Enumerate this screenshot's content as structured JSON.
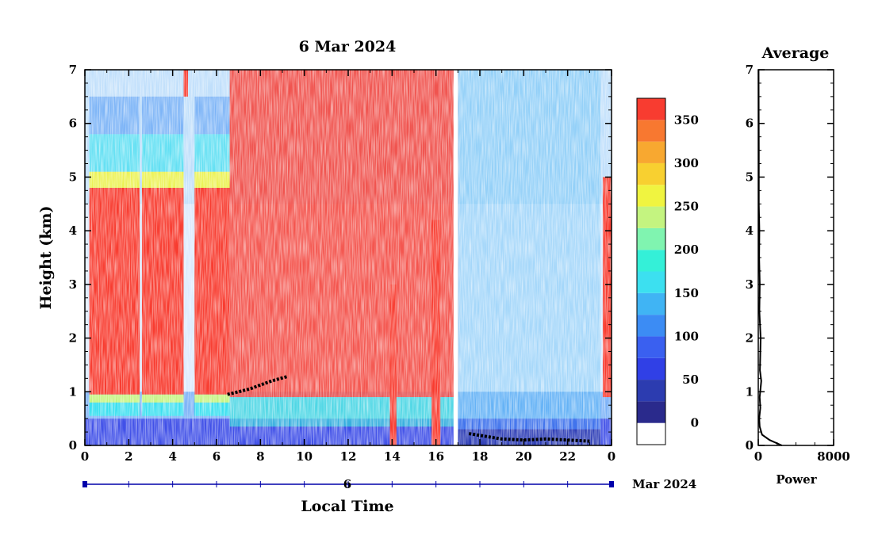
{
  "chart_data": [
    {
      "type": "heatmap",
      "title": "6 Mar 2024",
      "xlabel": "Local Time",
      "ylabel": "Height (km)",
      "xlim": [
        0,
        24
      ],
      "ylim": [
        0,
        7
      ],
      "x_ticks": [
        "0",
        "2",
        "4",
        "6",
        "8",
        "10",
        "12",
        "14",
        "16",
        "18",
        "20",
        "22",
        "0"
      ],
      "y_ticks": [
        "0",
        "1",
        "2",
        "3",
        "4",
        "5",
        "6",
        "7"
      ],
      "date_axis": {
        "day_label": "6",
        "month_label": "Mar 2024"
      },
      "colorbar": {
        "ticks": [
          "0",
          "50",
          "100",
          "150",
          "200",
          "250",
          "300",
          "350"
        ],
        "range": [
          -25,
          375
        ],
        "colors": [
          "#ffffff",
          "#2a2a8c",
          "#2c3cb0",
          "#3040e6",
          "#3a60f0",
          "#3c8cf4",
          "#40b4f4",
          "#3ce0f0",
          "#34f0d8",
          "#80f4b0",
          "#c4f480",
          "#f0f440",
          "#f8d030",
          "#f8a830",
          "#f87830",
          "#f83c30"
        ]
      },
      "features": {
        "low_level_cloud_layer": [
          [
            6.5,
            0.95
          ],
          [
            7.5,
            1.05
          ],
          [
            8.5,
            1.2
          ],
          [
            9.2,
            1.28
          ]
        ],
        "boundary_layer_top": [
          [
            17.5,
            0.22
          ],
          [
            19,
            0.12
          ],
          [
            20,
            0.1
          ],
          [
            21,
            0.12
          ],
          [
            22,
            0.1
          ],
          [
            23,
            0.08
          ]
        ],
        "high_backscatter_periods": [
          [
            0.2,
            2.4
          ],
          [
            2.6,
            4.5
          ],
          [
            5.0,
            6.5
          ],
          [
            6.6,
            17.0
          ],
          [
            23.6,
            24
          ]
        ]
      }
    },
    {
      "type": "line",
      "title": "Average",
      "xlabel": "Power",
      "xlim": [
        0,
        8000
      ],
      "ylim": [
        0,
        7
      ],
      "x_ticks": [
        "0",
        "8000"
      ],
      "y_ticks": [
        "0",
        "1",
        "2",
        "3",
        "4",
        "5",
        "6",
        "7"
      ],
      "series": [
        {
          "x": [
            2500,
            1200,
            400,
            150,
            100,
            220,
            150,
            320,
            180,
            250,
            120,
            160,
            90,
            120,
            60,
            60,
            40,
            30
          ],
          "y": [
            0.0,
            0.1,
            0.2,
            0.35,
            0.5,
            0.7,
            0.9,
            1.2,
            1.4,
            2.0,
            2.5,
            3.0,
            3.5,
            4.0,
            4.5,
            5.5,
            6.5,
            7.0
          ]
        }
      ]
    }
  ]
}
